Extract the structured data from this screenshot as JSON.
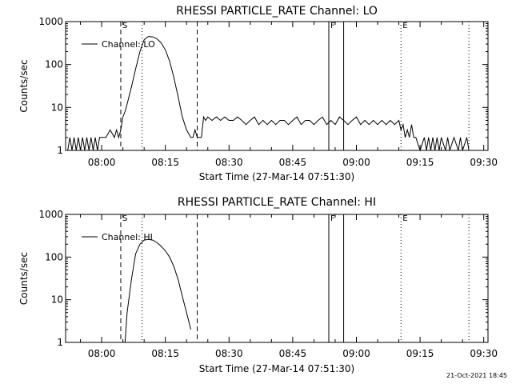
{
  "footer_text": "21-Oct-2021 18:45",
  "chart_data": [
    {
      "type": "line",
      "title": "RHESSI PARTICLE_RATE Channel: LO",
      "xlabel": "Start Time (27-Mar-14 07:51:30)",
      "ylabel": "Counts/sec",
      "yscale": "log",
      "ylim": [
        1,
        1000
      ],
      "xlim": [
        "07:51:30",
        "09:31:00"
      ],
      "y_ticks": [
        "1",
        "10",
        "100",
        "1000"
      ],
      "x_ticks": [
        "08:00",
        "08:15",
        "08:30",
        "08:45",
        "09:00",
        "09:15",
        "09:30"
      ],
      "legend": {
        "position": "top-left",
        "entries": [
          "Channel: LO"
        ]
      },
      "marker_labels": [
        "S",
        "F",
        "E"
      ],
      "dashed_lines": [
        "08:04:30",
        "08:22:30"
      ],
      "dotted_lines": [
        "08:09:30",
        "09:10:30",
        "09:26:30"
      ],
      "solid_lines": [
        "08:53:30",
        "08:57:00"
      ],
      "series": [
        {
          "name": "Channel: LO",
          "x": [
            "07:52:00",
            "07:52:30",
            "07:53:00",
            "07:53:30",
            "07:54:00",
            "07:54:30",
            "07:55:00",
            "07:55:30",
            "07:56:00",
            "07:56:30",
            "07:57:00",
            "07:57:30",
            "07:58:00",
            "07:58:30",
            "07:59:00",
            "07:59:30",
            "08:00:00",
            "08:01:00",
            "08:02:00",
            "08:03:00",
            "08:03:30",
            "08:04:00",
            "08:04:30",
            "08:05:00",
            "08:05:30",
            "08:06:00",
            "08:07:00",
            "08:08:00",
            "08:09:00",
            "08:10:00",
            "08:11:00",
            "08:12:00",
            "08:13:00",
            "08:14:00",
            "08:15:00",
            "08:16:00",
            "08:17:00",
            "08:18:00",
            "08:19:00",
            "08:20:00",
            "08:21:00",
            "08:21:30",
            "08:22:00",
            "08:22:30",
            "08:23:00",
            "08:23:30",
            "08:24:00",
            "08:24:30",
            "08:25:00",
            "08:26:00",
            "08:27:00",
            "08:28:00",
            "08:29:00",
            "08:30:00",
            "08:31:00",
            "08:32:00",
            "08:33:00",
            "08:34:00",
            "08:35:00",
            "08:36:00",
            "08:37:00",
            "08:38:00",
            "08:39:00",
            "08:40:00",
            "08:41:00",
            "08:42:00",
            "08:43:00",
            "08:44:00",
            "08:45:00",
            "08:46:00",
            "08:47:00",
            "08:48:00",
            "08:49:00",
            "08:50:00",
            "08:51:00",
            "08:52:00",
            "08:53:00",
            "08:54:00",
            "08:55:00",
            "08:56:00",
            "08:57:00",
            "08:58:00",
            "08:59:00",
            "09:00:00",
            "09:01:00",
            "09:02:00",
            "09:03:00",
            "09:04:00",
            "09:05:00",
            "09:06:00",
            "09:07:00",
            "09:08:00",
            "09:09:00",
            "09:10:00",
            "09:10:30",
            "09:11:00",
            "09:11:30",
            "09:12:00",
            "09:12:30",
            "09:13:00",
            "09:13:30",
            "09:14:00",
            "09:15:00",
            "09:16:00",
            "09:16:30",
            "09:17:00",
            "09:17:30",
            "09:18:00",
            "09:18:30",
            "09:19:00",
            "09:19:30",
            "09:20:00",
            "09:21:00",
            "09:21:30",
            "09:22:00",
            "09:23:00",
            "09:24:00",
            "09:24:30",
            "09:25:00",
            "09:26:00",
            "09:26:30"
          ],
          "values": [
            1,
            2,
            1,
            2,
            1,
            2,
            1,
            2,
            1,
            2,
            1,
            2,
            1,
            2,
            1,
            2,
            2,
            2,
            3,
            2,
            3,
            2,
            3,
            6,
            8,
            12,
            30,
            80,
            200,
            380,
            450,
            440,
            400,
            320,
            220,
            120,
            50,
            18,
            6,
            3,
            2,
            2,
            3,
            2,
            2,
            2,
            6,
            5,
            6,
            5,
            6,
            5,
            6,
            5,
            5,
            6,
            5,
            4,
            5,
            6,
            4,
            5,
            4,
            5,
            4,
            5,
            5,
            4,
            5,
            6,
            4,
            5,
            5,
            4,
            5,
            6,
            4,
            5,
            4,
            6,
            5,
            4,
            5,
            6,
            4,
            5,
            4,
            5,
            4,
            5,
            4,
            5,
            4,
            5,
            3,
            4,
            2,
            3,
            2,
            4,
            2,
            2,
            1,
            2,
            1,
            2,
            1,
            2,
            1,
            2,
            1,
            2,
            1,
            2,
            1,
            2,
            1,
            2,
            1,
            2,
            1
          ]
        }
      ]
    },
    {
      "type": "line",
      "title": "RHESSI PARTICLE_RATE Channel: HI",
      "xlabel": "Start Time (27-Mar-14 07:51:30)",
      "ylabel": "Counts/sec",
      "yscale": "log",
      "ylim": [
        1,
        1000
      ],
      "xlim": [
        "07:51:30",
        "09:31:00"
      ],
      "y_ticks": [
        "1",
        "10",
        "100",
        "1000"
      ],
      "x_ticks": [
        "08:00",
        "08:15",
        "08:30",
        "08:45",
        "09:00",
        "09:15",
        "09:30"
      ],
      "legend": {
        "position": "top-left",
        "entries": [
          "Channel: HI"
        ]
      },
      "marker_labels": [
        "S",
        "F",
        "E"
      ],
      "dashed_lines": [
        "08:04:30",
        "08:22:30"
      ],
      "dotted_lines": [
        "08:09:30",
        "09:10:30",
        "09:26:30"
      ],
      "solid_lines": [
        "08:53:30",
        "08:57:00"
      ],
      "series": [
        {
          "name": "Channel: HI",
          "x": [
            "08:05:30",
            "08:06:00",
            "08:07:00",
            "08:08:00",
            "08:09:00",
            "08:10:00",
            "08:11:00",
            "08:12:00",
            "08:13:00",
            "08:14:00",
            "08:15:00",
            "08:16:00",
            "08:17:00",
            "08:18:00",
            "08:19:00",
            "08:20:00",
            "08:21:00"
          ],
          "values": [
            1,
            5,
            30,
            120,
            200,
            250,
            260,
            250,
            220,
            180,
            140,
            100,
            60,
            30,
            12,
            5,
            2
          ]
        }
      ]
    }
  ]
}
